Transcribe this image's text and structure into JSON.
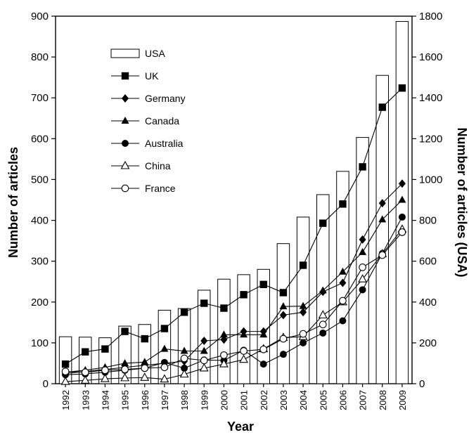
{
  "chart_data": {
    "type": "bar",
    "title": "",
    "xlabel": "Year",
    "ylabel": "Number of articles",
    "y2label": "Number of articles (USA)",
    "ylim": [
      0,
      900
    ],
    "y2lim": [
      0,
      1800
    ],
    "yticks": [
      "0",
      "100",
      "200",
      "300",
      "400",
      "500",
      "600",
      "700",
      "800",
      "900"
    ],
    "y2ticks": [
      "0",
      "200",
      "400",
      "600",
      "800",
      "1000",
      "1200",
      "1400",
      "1600",
      "1800"
    ],
    "grid": false,
    "legend_position": "top-left",
    "categories": [
      "1992",
      "1993",
      "1994",
      "1995",
      "1996",
      "1997",
      "1998",
      "1999",
      "2000",
      "2001",
      "2002",
      "2003",
      "2004",
      "2005",
      "2006",
      "2007",
      "2008",
      "2009"
    ],
    "bar_series": {
      "name": "USA",
      "axis": "right",
      "marker": "open-bar",
      "values": [
        230,
        228,
        225,
        282,
        290,
        360,
        368,
        458,
        512,
        534,
        560,
        686,
        816,
        926,
        1040,
        1206,
        1510,
        1774
      ]
    },
    "series": [
      {
        "name": "UK",
        "marker": "filled-square",
        "values": [
          48,
          78,
          85,
          128,
          110,
          135,
          175,
          197,
          185,
          218,
          243,
          223,
          290,
          393,
          440,
          531,
          677,
          724
        ]
      },
      {
        "name": "Germany",
        "marker": "filled-diamond",
        "values": [
          25,
          30,
          35,
          40,
          45,
          50,
          55,
          105,
          108,
          128,
          128,
          168,
          175,
          225,
          247,
          353,
          442,
          490
        ]
      },
      {
        "name": "Canada",
        "marker": "filled-triangle",
        "values": [
          28,
          33,
          40,
          50,
          53,
          85,
          80,
          80,
          120,
          120,
          120,
          189,
          190,
          228,
          274,
          322,
          402,
          450
        ]
      },
      {
        "name": "Australia",
        "marker": "filled-circle",
        "values": [
          22,
          24,
          28,
          33,
          38,
          52,
          38,
          58,
          57,
          82,
          48,
          72,
          100,
          124,
          154,
          230,
          319,
          408
        ]
      },
      {
        "name": "China",
        "marker": "open-triangle",
        "values": [
          5,
          8,
          12,
          14,
          15,
          11,
          23,
          38,
          48,
          59,
          85,
          113,
          115,
          168,
          200,
          256,
          318,
          378
        ]
      },
      {
        "name": "France",
        "marker": "open-circle",
        "values": [
          30,
          28,
          33,
          35,
          38,
          40,
          62,
          57,
          70,
          80,
          84,
          110,
          122,
          145,
          203,
          285,
          315,
          371
        ]
      }
    ]
  }
}
